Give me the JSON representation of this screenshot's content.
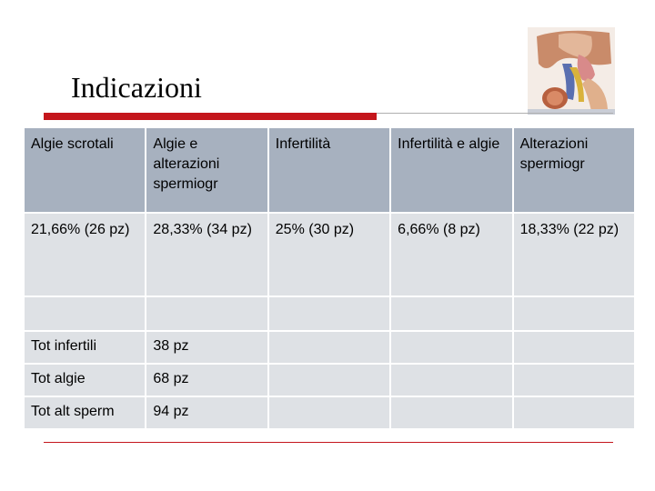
{
  "slide": {
    "title": "Indicazioni"
  },
  "table": {
    "header": [
      "Algie scrotali",
      "Algie e alterazioni spermiogr",
      "Infertilità",
      "Infertilità e algie",
      "Alterazioni spermiogr"
    ],
    "percent_row": [
      "21,66% (26 pz)",
      "28,33% (34 pz)",
      "25% (30 pz)",
      "6,66% (8 pz)",
      "18,33% (22 pz)"
    ],
    "totals": [
      {
        "label": "Tot infertili",
        "value": "38 pz"
      },
      {
        "label": "Tot algie",
        "value": "68 pz"
      },
      {
        "label": "Tot alt sperm",
        "value": "94 pz"
      }
    ]
  },
  "colors": {
    "accent_red": "#c4161c",
    "header_bg": "#a7b1bf",
    "cell_bg": "#dee1e5"
  },
  "icons": {
    "anatomy": "anatomical-illustration-icon"
  }
}
